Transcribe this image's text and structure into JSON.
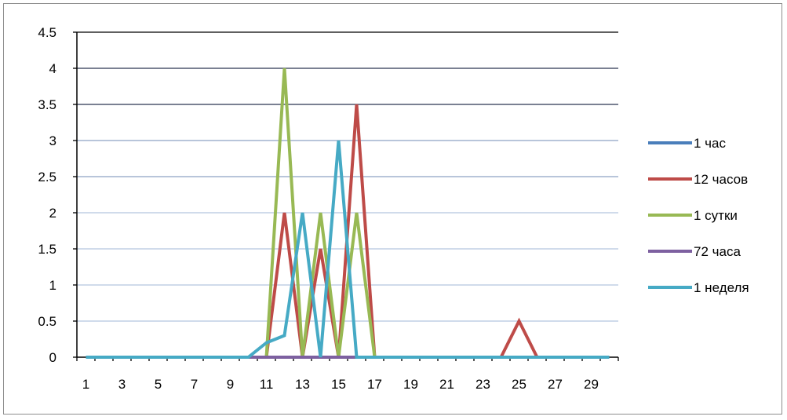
{
  "chart_data": {
    "type": "line",
    "title": "",
    "xlabel": "",
    "ylabel": "",
    "x": [
      1,
      2,
      3,
      4,
      5,
      6,
      7,
      8,
      9,
      10,
      11,
      12,
      13,
      14,
      15,
      16,
      17,
      18,
      19,
      20,
      21,
      22,
      23,
      24,
      25,
      26,
      27,
      28,
      29,
      30
    ],
    "x_tick_labels": [
      "1",
      "3",
      "5",
      "7",
      "9",
      "11",
      "13",
      "15",
      "17",
      "19",
      "21",
      "23",
      "25",
      "27",
      "29"
    ],
    "y_tick_labels": [
      "0",
      "0.5",
      "1",
      "1.5",
      "2",
      "2.5",
      "3",
      "3.5",
      "4",
      "4.5"
    ],
    "ylim": [
      0,
      4.5
    ],
    "grid": true,
    "legend_position": "right",
    "series": [
      {
        "name": "1 час",
        "color": "#4a7ebb",
        "values": [
          0,
          0,
          0,
          0,
          0,
          0,
          0,
          0,
          0,
          0,
          0,
          0,
          0,
          0,
          0,
          0,
          0,
          0,
          0,
          0,
          0,
          0,
          0,
          0,
          0,
          0,
          0,
          0,
          0,
          0
        ]
      },
      {
        "name": "12 часов",
        "color": "#be4b48",
        "values": [
          0,
          0,
          0,
          0,
          0,
          0,
          0,
          0,
          0,
          0,
          0,
          2,
          0,
          1.5,
          0,
          3.5,
          0,
          0,
          0,
          0,
          0,
          0,
          0,
          0,
          0.5,
          0,
          0,
          0,
          0,
          0
        ]
      },
      {
        "name": "1 сутки",
        "color": "#98b954",
        "values": [
          0,
          0,
          0,
          0,
          0,
          0,
          0,
          0,
          0,
          0,
          0,
          4,
          0,
          2,
          0,
          2,
          0,
          0,
          0,
          0,
          0,
          0,
          0,
          0,
          0,
          0,
          0,
          0,
          0,
          0
        ]
      },
      {
        "name": "72 часа",
        "color": "#7d60a0",
        "values": [
          0,
          0,
          0,
          0,
          0,
          0,
          0,
          0,
          0,
          0,
          0,
          0,
          0,
          0,
          0,
          0,
          0,
          0,
          0,
          0,
          0,
          0,
          0,
          0,
          0,
          0,
          0,
          0,
          0,
          0
        ]
      },
      {
        "name": "1 неделя",
        "color": "#46aac5",
        "values": [
          0,
          0,
          0,
          0,
          0,
          0,
          0,
          0,
          0,
          0,
          0.2,
          0.3,
          2,
          0,
          3,
          0,
          0,
          0,
          0,
          0,
          0,
          0,
          0,
          0,
          0,
          0,
          0,
          0,
          0,
          0
        ]
      }
    ]
  }
}
